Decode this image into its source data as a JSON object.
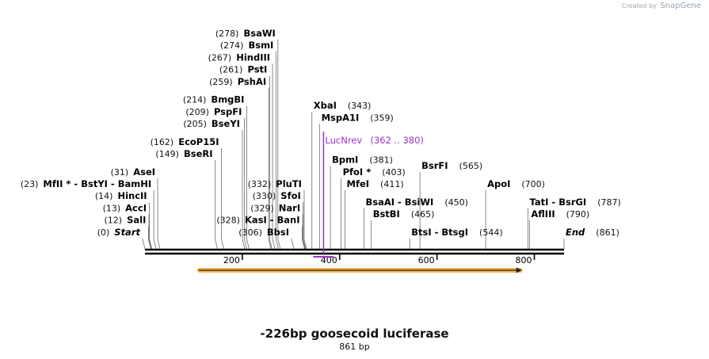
{
  "brand": {
    "created_by": "Created by",
    "product": "SnapGene"
  },
  "title": "-226bp goosecoid luciferase",
  "length_label": "861 bp",
  "sequence_length": 861,
  "ticks": [
    200,
    400,
    600,
    800
  ],
  "primer": {
    "name": "LucNrev",
    "range": "(362 .. 380)",
    "start": 362,
    "end": 380,
    "color": "#9a32c8"
  },
  "feature": {
    "start": 107,
    "end": 776,
    "color": "#f0a830",
    "direction": "forward"
  },
  "labels": [
    {
      "text": "BsaWI",
      "pos_text": "(278)",
      "pos": 278,
      "side": "left",
      "row": 0
    },
    {
      "text": "BsmI",
      "pos_text": "(274)",
      "pos": 274,
      "side": "left",
      "row": 1
    },
    {
      "text": "HindIII",
      "pos_text": "(267)",
      "pos": 267,
      "side": "left",
      "row": 2
    },
    {
      "text": "PstI",
      "pos_text": "(261)",
      "pos": 261,
      "side": "left",
      "row": 3
    },
    {
      "text": "PshAI",
      "pos_text": "(259)",
      "pos": 259,
      "side": "left",
      "row": 4
    },
    {
      "text": "BmgBI",
      "pos_text": "(214)",
      "pos": 214,
      "side": "left",
      "row": 5.5
    },
    {
      "text": "PspFI",
      "pos_text": "(209)",
      "pos": 209,
      "side": "left",
      "row": 6.5
    },
    {
      "text": "BseYI",
      "pos_text": "(205)",
      "pos": 205,
      "side": "left",
      "row": 7.5
    },
    {
      "text": "EcoP15I",
      "pos_text": "(162)",
      "pos": 162,
      "side": "left",
      "row": 9
    },
    {
      "text": "BseRI",
      "pos_text": "(149)",
      "pos": 149,
      "side": "left",
      "row": 10
    },
    {
      "text": "AseI",
      "pos_text": "(31)",
      "pos": 31,
      "side": "left",
      "row": 11.5
    },
    {
      "text": "MfII * - BstYI - BamHI",
      "pos_text": "(23)",
      "pos": 23,
      "side": "left",
      "row": 12.5
    },
    {
      "text": "HincII",
      "pos_text": "(14)",
      "pos": 14,
      "side": "left",
      "row": 13.5
    },
    {
      "text": "AccI",
      "pos_text": "(13)",
      "pos": 13,
      "side": "left",
      "row": 14.5
    },
    {
      "text": "SalI",
      "pos_text": "(12)",
      "pos": 12,
      "side": "left",
      "row": 15.5
    },
    {
      "text": "Start",
      "pos_text": "(0)",
      "pos": 0,
      "side": "left",
      "row": 16.5,
      "italic": true
    },
    {
      "text": "PluTI",
      "pos_text": "(332)",
      "pos": 332,
      "side": "left",
      "row": 12.5
    },
    {
      "text": "SfoI",
      "pos_text": "(330)",
      "pos": 330,
      "side": "left",
      "row": 13.5
    },
    {
      "text": "NarI",
      "pos_text": "(329)",
      "pos": 329,
      "side": "left",
      "row": 14.5
    },
    {
      "text": "KasI - BanI",
      "pos_text": "(328)",
      "pos": 328,
      "side": "left",
      "row": 15.5
    },
    {
      "text": "BbsI",
      "pos_text": "(306)",
      "pos": 306,
      "side": "left",
      "row": 16.5
    },
    {
      "text": "XbaI",
      "pos_text": "(343)",
      "pos": 343,
      "side": "right",
      "row": 6
    },
    {
      "text": "MspA1I",
      "pos_text": "(359)",
      "pos": 359,
      "side": "right",
      "row": 7
    },
    {
      "text": "BpmI",
      "pos_text": "(381)",
      "pos": 381,
      "side": "right",
      "row": 10.5
    },
    {
      "text": "PfoI *",
      "pos_text": "(403)",
      "pos": 403,
      "side": "right",
      "row": 11.5
    },
    {
      "text": "MfeI",
      "pos_text": "(411)",
      "pos": 411,
      "side": "right",
      "row": 12.5
    },
    {
      "text": "BsrFI",
      "pos_text": "(565)",
      "pos": 565,
      "side": "right",
      "row": 11
    },
    {
      "text": "BsaAI - BsiWI",
      "pos_text": "(450)",
      "pos": 450,
      "side": "right",
      "row": 14
    },
    {
      "text": "BstBI",
      "pos_text": "(465)",
      "pos": 465,
      "side": "right",
      "row": 15
    },
    {
      "text": "BtsI - BtsgI",
      "pos_text": "(544)",
      "pos": 544,
      "side": "right",
      "row": 16.5
    },
    {
      "text": "ApoI",
      "pos_text": "(700)",
      "pos": 700,
      "side": "right",
      "row": 12.5
    },
    {
      "text": "TatI - BsrGI",
      "pos_text": "(787)",
      "pos": 787,
      "side": "right",
      "row": 14
    },
    {
      "text": "AflIII",
      "pos_text": "(790)",
      "pos": 790,
      "side": "right",
      "row": 15
    },
    {
      "text": "End",
      "pos_text": "(861)",
      "pos": 861,
      "side": "right",
      "row": 16.5,
      "italic": true
    }
  ]
}
